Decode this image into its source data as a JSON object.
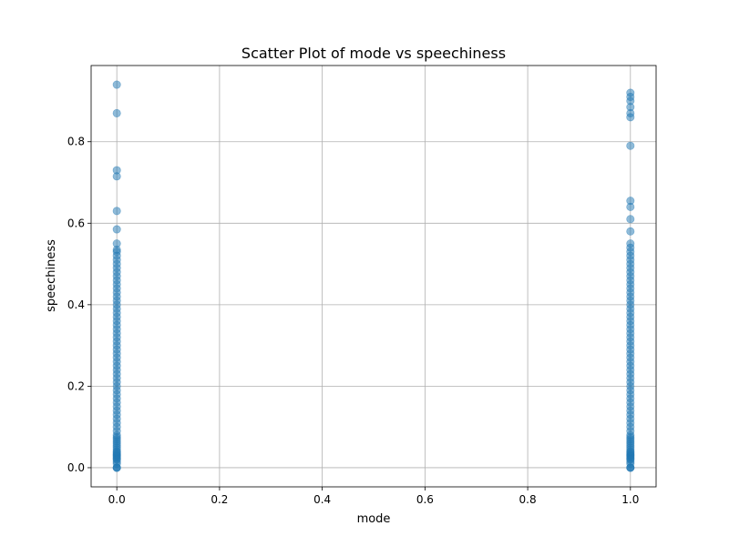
{
  "chart_data": {
    "type": "scatter",
    "title": "Scatter Plot of mode vs speechiness",
    "xlabel": "mode",
    "ylabel": "speechiness",
    "xlim": [
      -0.05,
      1.05
    ],
    "ylim": [
      -0.047,
      0.987
    ],
    "xticks": [
      0.0,
      0.2,
      0.4,
      0.6,
      0.8,
      1.0
    ],
    "xtick_labels": [
      "0.0",
      "0.2",
      "0.4",
      "0.6",
      "0.8",
      "1.0"
    ],
    "yticks": [
      0.0,
      0.2,
      0.4,
      0.6,
      0.8
    ],
    "ytick_labels": [
      "0.0",
      "0.2",
      "0.4",
      "0.6",
      "0.8"
    ],
    "grid": true,
    "marker_color": "#1f77b4",
    "marker_alpha": 0.5,
    "series": [
      {
        "x_value": 0,
        "y": [
          0.0,
          0.0,
          0.0,
          0.01,
          0.015,
          0.02,
          0.022,
          0.025,
          0.028,
          0.03,
          0.032,
          0.035,
          0.038,
          0.04,
          0.045,
          0.05,
          0.055,
          0.06,
          0.065,
          0.07,
          0.075,
          0.08,
          0.09,
          0.1,
          0.11,
          0.12,
          0.13,
          0.14,
          0.15,
          0.16,
          0.17,
          0.18,
          0.19,
          0.2,
          0.21,
          0.22,
          0.23,
          0.24,
          0.25,
          0.26,
          0.27,
          0.28,
          0.29,
          0.3,
          0.31,
          0.32,
          0.33,
          0.34,
          0.35,
          0.36,
          0.37,
          0.38,
          0.39,
          0.4,
          0.41,
          0.42,
          0.43,
          0.44,
          0.45,
          0.46,
          0.47,
          0.48,
          0.49,
          0.5,
          0.51,
          0.52,
          0.53,
          0.535,
          0.55,
          0.585,
          0.63,
          0.715,
          0.73,
          0.87,
          0.94
        ]
      },
      {
        "x_value": 1,
        "y": [
          0.0,
          0.0,
          0.0,
          0.01,
          0.015,
          0.02,
          0.022,
          0.025,
          0.028,
          0.03,
          0.032,
          0.035,
          0.038,
          0.04,
          0.045,
          0.05,
          0.055,
          0.06,
          0.065,
          0.07,
          0.075,
          0.08,
          0.09,
          0.1,
          0.11,
          0.12,
          0.13,
          0.14,
          0.15,
          0.16,
          0.17,
          0.18,
          0.19,
          0.2,
          0.21,
          0.22,
          0.23,
          0.24,
          0.25,
          0.26,
          0.27,
          0.28,
          0.29,
          0.3,
          0.31,
          0.32,
          0.33,
          0.34,
          0.35,
          0.36,
          0.37,
          0.38,
          0.39,
          0.4,
          0.41,
          0.42,
          0.43,
          0.44,
          0.45,
          0.46,
          0.47,
          0.48,
          0.49,
          0.5,
          0.51,
          0.52,
          0.53,
          0.54,
          0.55,
          0.58,
          0.61,
          0.64,
          0.655,
          0.79,
          0.86,
          0.87,
          0.885,
          0.9,
          0.91,
          0.92
        ]
      }
    ]
  }
}
